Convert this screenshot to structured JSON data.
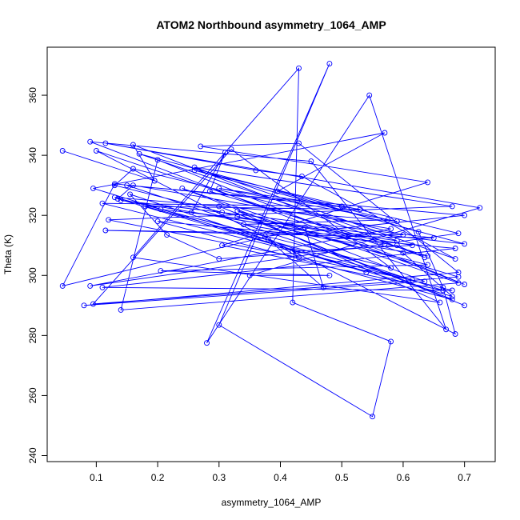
{
  "chart_data": {
    "type": "line",
    "title": "ATOM2 Northbound asymmetry_1064_AMP",
    "xlabel": "asymmetry_1064_AMP",
    "ylabel": "Theta (K)",
    "xlim": [
      0.02,
      0.75
    ],
    "ylim": [
      238,
      376
    ],
    "xticks": [
      0.1,
      0.2,
      0.3,
      0.4,
      0.5,
      0.6,
      0.7
    ],
    "yticks": [
      240,
      260,
      280,
      300,
      320,
      340,
      360
    ],
    "grid": false,
    "legend": "none",
    "series": [
      {
        "color": "#0000ff",
        "points": [
          [
            0.045,
            341.5
          ],
          [
            0.195,
            331.5
          ],
          [
            0.16,
            343.5
          ],
          [
            0.635,
            306.0
          ],
          [
            0.59,
            310.0
          ],
          [
            0.3,
            305.5
          ],
          [
            0.215,
            313.5
          ],
          [
            0.155,
            327.0
          ],
          [
            0.54,
            301.0
          ],
          [
            0.095,
            329.0
          ],
          [
            0.57,
            347.5
          ],
          [
            0.395,
            328.0
          ],
          [
            0.625,
            314.5
          ],
          [
            0.665,
            296.0
          ],
          [
            0.685,
            280.5
          ],
          [
            0.1,
            341.5
          ],
          [
            0.6,
            307.5
          ],
          [
            0.68,
            293.0
          ],
          [
            0.135,
            325.5
          ],
          [
            0.16,
            330.0
          ],
          [
            0.58,
            315.5
          ],
          [
            0.09,
            296.5
          ],
          [
            0.69,
            314.0
          ],
          [
            0.26,
            335.0
          ],
          [
            0.7,
            310.5
          ],
          [
            0.205,
            322.0
          ],
          [
            0.58,
            302.5
          ],
          [
            0.32,
            342.0
          ],
          [
            0.095,
            290.5
          ],
          [
            0.69,
            299.5
          ],
          [
            0.33,
            321.5
          ],
          [
            0.66,
            291.0
          ],
          [
            0.16,
            306.0
          ],
          [
            0.43,
            369.0
          ],
          [
            0.42,
            291.0
          ],
          [
            0.58,
            278.0
          ],
          [
            0.55,
            253.0
          ],
          [
            0.3,
            283.5
          ],
          [
            0.48,
            370.5
          ],
          [
            0.28,
            277.5
          ],
          [
            0.545,
            360.0
          ],
          [
            0.67,
            282.0
          ],
          [
            0.45,
            338.0
          ],
          [
            0.09,
            344.5
          ],
          [
            0.7,
            297.0
          ],
          [
            0.2,
            338.5
          ],
          [
            0.14,
            288.5
          ],
          [
            0.69,
            297.5
          ],
          [
            0.24,
            329.0
          ],
          [
            0.635,
            298.0
          ],
          [
            0.08,
            290.0
          ],
          [
            0.69,
            301.0
          ],
          [
            0.43,
            344.0
          ],
          [
            0.27,
            343.0
          ],
          [
            0.64,
            331.0
          ],
          [
            0.305,
            310.0
          ],
          [
            0.665,
            295.0
          ],
          [
            0.15,
            330.0
          ],
          [
            0.7,
            320.0
          ],
          [
            0.375,
            313.0
          ],
          [
            0.13,
            326.0
          ],
          [
            0.59,
            318.0
          ],
          [
            0.3,
            329.0
          ],
          [
            0.53,
            322.0
          ],
          [
            0.18,
            323.0
          ],
          [
            0.615,
            298.5
          ],
          [
            0.12,
            318.5
          ],
          [
            0.68,
            323.0
          ],
          [
            0.26,
            336.0
          ],
          [
            0.685,
            305.5
          ],
          [
            0.435,
            333.0
          ],
          [
            0.36,
            335.0
          ],
          [
            0.115,
            344.0
          ],
          [
            0.725,
            322.5
          ],
          [
            0.35,
            300.0
          ],
          [
            0.48,
            300.0
          ],
          [
            0.205,
            301.5
          ],
          [
            0.64,
            303.5
          ],
          [
            0.305,
            321.0
          ],
          [
            0.13,
            330.0
          ],
          [
            0.16,
            335.5
          ],
          [
            0.6,
            313.5
          ],
          [
            0.115,
            315.0
          ],
          [
            0.65,
            312.5
          ],
          [
            0.14,
            325.0
          ],
          [
            0.57,
            310.5
          ],
          [
            0.255,
            321.0
          ],
          [
            0.31,
            341.0
          ],
          [
            0.285,
            328.0
          ],
          [
            0.64,
            306.5
          ],
          [
            0.34,
            317.0
          ],
          [
            0.575,
            318.5
          ],
          [
            0.17,
            340.5
          ],
          [
            0.59,
            311.5
          ],
          [
            0.33,
            319.5
          ],
          [
            0.615,
            310.0
          ],
          [
            0.42,
            308.0
          ],
          [
            0.43,
            306.0
          ],
          [
            0.38,
            312.0
          ],
          [
            0.47,
            296.0
          ],
          [
            0.44,
            316.0
          ],
          [
            0.045,
            296.5
          ],
          [
            0.13,
            330.5
          ],
          [
            0.5,
            323.0
          ],
          [
            0.11,
            324.0
          ],
          [
            0.68,
            295.0
          ],
          [
            0.11,
            296.0
          ],
          [
            0.685,
            309.0
          ],
          [
            0.2,
            318.0
          ],
          [
            0.68,
            292.0
          ],
          [
            0.3,
            323.0
          ],
          [
            0.7,
            290.0
          ]
        ]
      }
    ]
  }
}
